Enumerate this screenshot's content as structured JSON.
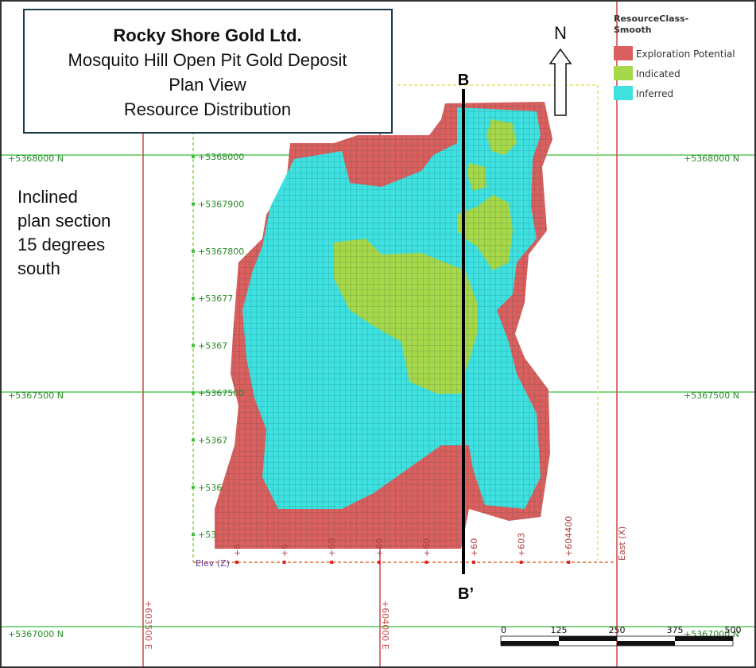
{
  "title_box": {
    "lines": [
      "Rocky Shore Gold Ltd.",
      "Mosquito Hill Open Pit  Gold Deposit",
      "Plan View",
      "Resource Distribution"
    ]
  },
  "section_note": {
    "lines": [
      "Inclined",
      "plan section",
      "15 degrees",
      "south"
    ]
  },
  "legend": {
    "title_lines": [
      "ResourceClass-",
      "Smooth"
    ],
    "items": [
      {
        "label": "Exploration Potential",
        "color": "#d9605e"
      },
      {
        "label": "Indicated",
        "color": "#a6d84a"
      },
      {
        "label": "Inferred",
        "color": "#3fe0e0"
      }
    ]
  },
  "north_label": "N",
  "section_line": {
    "start_label": "B",
    "end_label": "B’"
  },
  "map_grid": {
    "northing_left": [
      "+5368000 N",
      "+5367500 N",
      "+5367000 N"
    ],
    "northing_right": [
      "+5368000 N",
      "+5367500 N",
      "+5367000 N"
    ],
    "easting": [
      "+603500 E",
      "+604000 E"
    ]
  },
  "block_axes": {
    "northing": [
      "+5368000",
      "+5367900",
      "+5367800",
      "+53677",
      "+5367",
      "+5367500",
      "+5367",
      "+536",
      "+53"
    ],
    "easting": [
      "+6",
      "+6",
      "+60",
      "+60",
      "+60",
      "+60",
      "+603",
      "+604400"
    ],
    "elev_label": "Elev (Z)",
    "east_label": "East (X)"
  },
  "scale_bar": {
    "labels": [
      "0",
      "125",
      "250",
      "375",
      "500"
    ]
  }
}
